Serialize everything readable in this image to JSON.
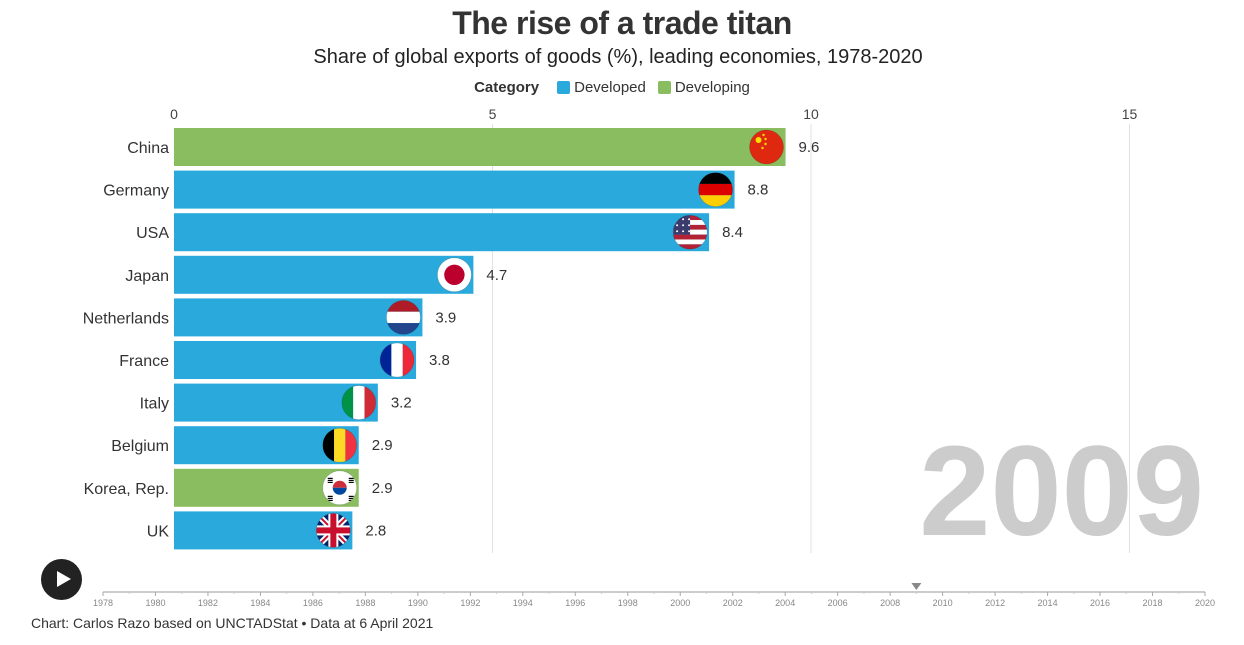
{
  "title": "The rise of a trade titan",
  "subtitle": "Share of global exports of goods (%), leading economies, 1978-2020",
  "legend": {
    "title": "Category",
    "items": [
      {
        "label": "Developed",
        "color": "#29a9dc"
      },
      {
        "label": "Developing",
        "color": "#8abd60"
      }
    ]
  },
  "footer": "Chart: Carlos Razo based on UNCTADStat • Data at 6 April 2021",
  "chart_data": {
    "type": "bar",
    "orientation": "horizontal",
    "current_year": "2009",
    "xlim": [
      0,
      16.5
    ],
    "x_ticks": [
      0,
      5,
      10,
      15
    ],
    "grid": true,
    "legend_placement": "top-center",
    "categories": [
      "China",
      "Germany",
      "USA",
      "Japan",
      "Netherlands",
      "France",
      "Italy",
      "Belgium",
      "Korea, Rep.",
      "UK"
    ],
    "values": [
      9.6,
      8.8,
      8.4,
      4.7,
      3.9,
      3.8,
      3.2,
      2.9,
      2.9,
      2.8
    ],
    "value_labels": [
      "9.6",
      "8.8",
      "8.4",
      "4.7",
      "3.9",
      "3.8",
      "3.2",
      "2.9",
      "2.9",
      "2.8"
    ],
    "bar_category": [
      "Developing",
      "Developed",
      "Developed",
      "Developed",
      "Developed",
      "Developed",
      "Developed",
      "Developed",
      "Developing",
      "Developed"
    ],
    "flag_icons": [
      "china-flag-icon",
      "germany-flag-icon",
      "usa-flag-icon",
      "japan-flag-icon",
      "netherlands-flag-icon",
      "france-flag-icon",
      "italy-flag-icon",
      "belgium-flag-icon",
      "korea-flag-icon",
      "uk-flag-icon"
    ]
  },
  "timeline": {
    "years": [
      "1978",
      "1980",
      "1982",
      "1984",
      "1986",
      "1988",
      "1990",
      "1992",
      "1994",
      "1996",
      "1998",
      "2000",
      "2002",
      "2004",
      "2006",
      "2008",
      "2010",
      "2012",
      "2014",
      "2016",
      "2018",
      "2020"
    ],
    "start_year": 1978,
    "end_year": 2020,
    "current_year": 2009
  },
  "controls": {
    "play_icon": "play-icon"
  }
}
